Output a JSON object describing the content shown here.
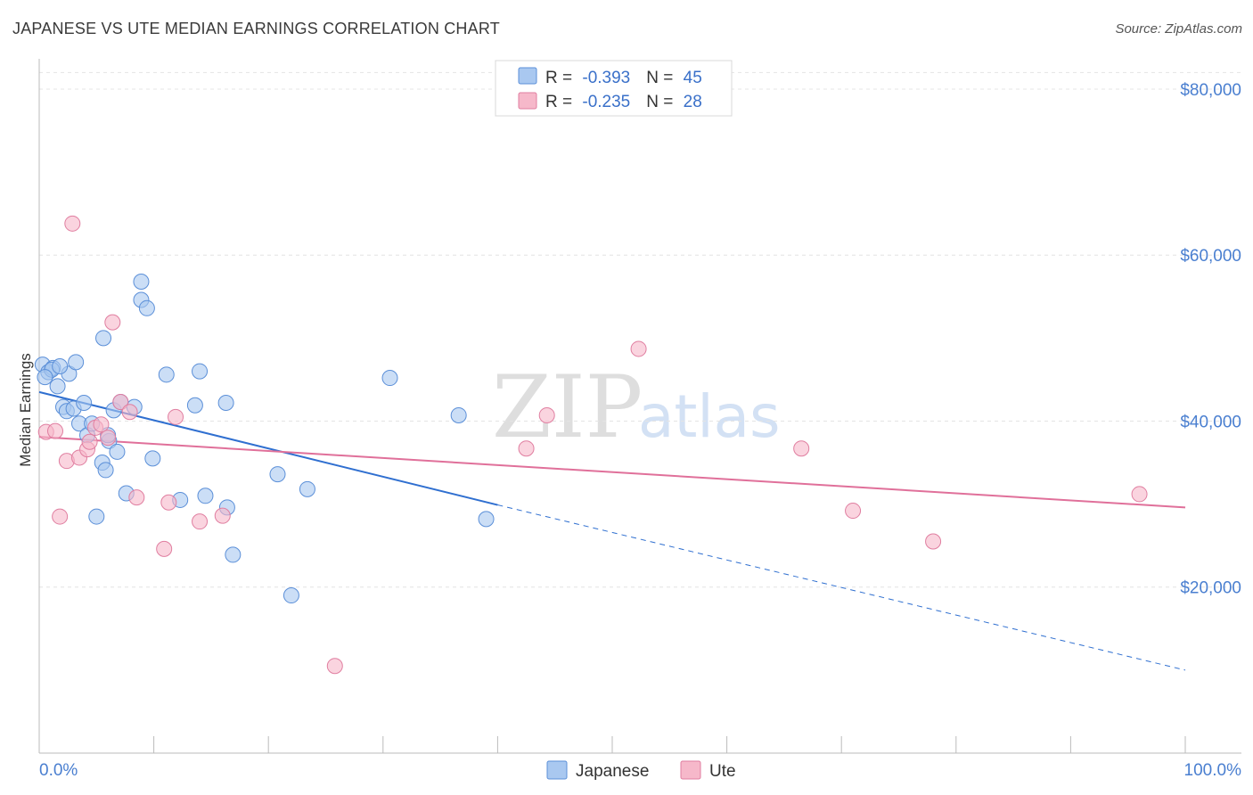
{
  "header": {
    "title": "JAPANESE VS UTE MEDIAN EARNINGS CORRELATION CHART",
    "source": "Source: ZipAtlas.com"
  },
  "watermark": {
    "zip": "ZIP",
    "atlas": "atlas"
  },
  "legend_top": [
    {
      "r_label": "R = ",
      "r_value": "-0.393",
      "n_label": "N = ",
      "n_value": "45",
      "color": "#a9c8f0"
    },
    {
      "r_label": "R = ",
      "r_value": "-0.235",
      "n_label": "N = ",
      "n_value": "28",
      "color": "#f6b8ca"
    }
  ],
  "chart_data": {
    "type": "scatter",
    "title": "JAPANESE VS UTE MEDIAN EARNINGS CORRELATION CHART",
    "xlabel": "",
    "ylabel": "Median Earnings",
    "xlim": [
      0,
      100
    ],
    "ylim": [
      0,
      83000
    ],
    "x_tick_labels": [
      "0.0%",
      "100.0%"
    ],
    "y_ticks": [
      20000,
      40000,
      60000,
      80000
    ],
    "y_tick_labels": [
      "$20,000",
      "$40,000",
      "$60,000",
      "$80,000"
    ],
    "grid": true,
    "legend_position": "bottom-center",
    "series": [
      {
        "name": "Japanese",
        "color": "#a9c8f0",
        "stroke": "#5b8fd8",
        "trend": {
          "x": [
            0,
            40
          ],
          "y": [
            43500,
            29900
          ],
          "dashed_to": [
            100,
            10000
          ],
          "color": "#2f6fd0"
        },
        "points": [
          [
            0.3,
            46800
          ],
          [
            0.8,
            45900
          ],
          [
            1.2,
            46400
          ],
          [
            1.6,
            44200
          ],
          [
            2.1,
            41700
          ],
          [
            2.4,
            41200
          ],
          [
            2.6,
            45700
          ],
          [
            3.0,
            41500
          ],
          [
            3.2,
            47100
          ],
          [
            3.5,
            39700
          ],
          [
            3.9,
            42200
          ],
          [
            4.2,
            38300
          ],
          [
            4.6,
            39700
          ],
          [
            5.0,
            28500
          ],
          [
            5.5,
            35000
          ],
          [
            5.6,
            50000
          ],
          [
            5.8,
            34100
          ],
          [
            6.1,
            37600
          ],
          [
            6.5,
            41300
          ],
          [
            6.8,
            36300
          ],
          [
            7.1,
            42300
          ],
          [
            7.6,
            31300
          ],
          [
            8.3,
            41700
          ],
          [
            8.9,
            56800
          ],
          [
            8.9,
            54600
          ],
          [
            9.4,
            53600
          ],
          [
            9.9,
            35500
          ],
          [
            11.1,
            45600
          ],
          [
            12.3,
            30500
          ],
          [
            13.6,
            41900
          ],
          [
            14.0,
            46000
          ],
          [
            14.5,
            31000
          ],
          [
            16.3,
            42200
          ],
          [
            16.4,
            29600
          ],
          [
            16.9,
            23900
          ],
          [
            20.8,
            33600
          ],
          [
            22.0,
            19000
          ],
          [
            23.4,
            31800
          ],
          [
            30.6,
            45200
          ],
          [
            36.6,
            40700
          ],
          [
            39.0,
            28200
          ],
          [
            1.1,
            46200
          ],
          [
            0.5,
            45300
          ],
          [
            1.8,
            46600
          ],
          [
            6.0,
            38300
          ]
        ]
      },
      {
        "name": "Ute",
        "color": "#f6b8ca",
        "stroke": "#e07ea0",
        "trend": {
          "x": [
            0,
            100
          ],
          "y": [
            38100,
            29600
          ],
          "color": "#e0709a"
        },
        "points": [
          [
            0.6,
            38700
          ],
          [
            1.4,
            38800
          ],
          [
            1.8,
            28500
          ],
          [
            2.4,
            35200
          ],
          [
            2.9,
            63800
          ],
          [
            3.5,
            35600
          ],
          [
            4.2,
            36600
          ],
          [
            4.9,
            39200
          ],
          [
            5.4,
            39600
          ],
          [
            6.0,
            38000
          ],
          [
            6.4,
            51900
          ],
          [
            7.1,
            42300
          ],
          [
            7.9,
            41100
          ],
          [
            8.5,
            30800
          ],
          [
            10.9,
            24600
          ],
          [
            11.3,
            30200
          ],
          [
            11.9,
            40500
          ],
          [
            14.0,
            27900
          ],
          [
            16.0,
            28600
          ],
          [
            25.8,
            10500
          ],
          [
            42.5,
            36700
          ],
          [
            44.3,
            40700
          ],
          [
            52.3,
            48700
          ],
          [
            66.5,
            36700
          ],
          [
            71.0,
            29200
          ],
          [
            78.0,
            25500
          ],
          [
            96.0,
            31200
          ],
          [
            4.4,
            37500
          ]
        ]
      }
    ]
  }
}
